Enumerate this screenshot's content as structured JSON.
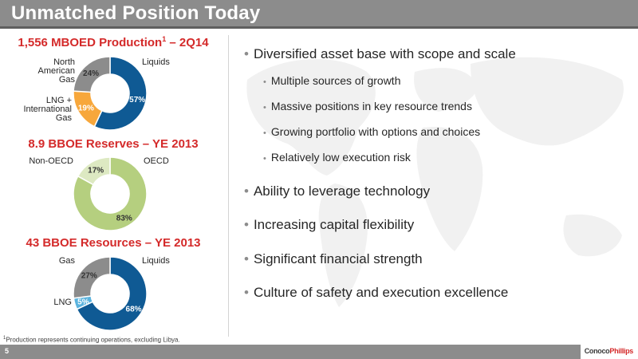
{
  "slide": {
    "title": "Unmatched Position Today",
    "page_number": "5",
    "footnote": {
      "sup": "1",
      "text": "Production represents continuing operations, excluding Libya."
    },
    "logo": {
      "part1": "Conoco",
      "part2": "Phillips"
    }
  },
  "charts": [
    {
      "title_main": "1,556 MBOED Production",
      "title_sup": "1",
      "title_rest": " – 2Q14",
      "segments": [
        {
          "label": "Liquids",
          "value": 57,
          "pct": "57%",
          "color": "#0f5a94"
        },
        {
          "label": "LNG + International Gas",
          "value": 19,
          "pct": "19%",
          "color": "#f7a73b"
        },
        {
          "label": "North American Gas",
          "value": 24,
          "pct": "24%",
          "color": "#8c8c8c"
        }
      ]
    },
    {
      "title_main": "8.9 BBOE Reserves – YE 2013",
      "segments": [
        {
          "label": "OECD",
          "value": 83,
          "pct": "83%",
          "color": "#b5cf7f"
        },
        {
          "label": "Non-OECD",
          "value": 17,
          "pct": "17%",
          "color": "#dde9c2"
        }
      ]
    },
    {
      "title_main": "43 BBOE Resources – YE 2013",
      "segments": [
        {
          "label": "Liquids",
          "value": 68,
          "pct": "68%",
          "color": "#0f5a94"
        },
        {
          "label": "LNG",
          "value": 5,
          "pct": "5%",
          "color": "#5ab3de"
        },
        {
          "label": "Gas",
          "value": 27,
          "pct": "27%",
          "color": "#8c8c8c"
        }
      ]
    }
  ],
  "bullets": [
    {
      "level": 1,
      "text": "Diversified asset base with scope and scale"
    },
    {
      "level": 2,
      "text": "Multiple sources of growth"
    },
    {
      "level": 2,
      "text": "Massive positions in key resource trends"
    },
    {
      "level": 2,
      "text": "Growing portfolio with options and choices"
    },
    {
      "level": 2,
      "text": "Relatively low execution risk"
    },
    {
      "level": 1,
      "text": "Ability to leverage technology"
    },
    {
      "level": 1,
      "text": "Increasing capital flexibility"
    },
    {
      "level": 1,
      "text": "Significant financial strength"
    },
    {
      "level": 1,
      "text": "Culture of safety and execution excellence"
    }
  ]
}
